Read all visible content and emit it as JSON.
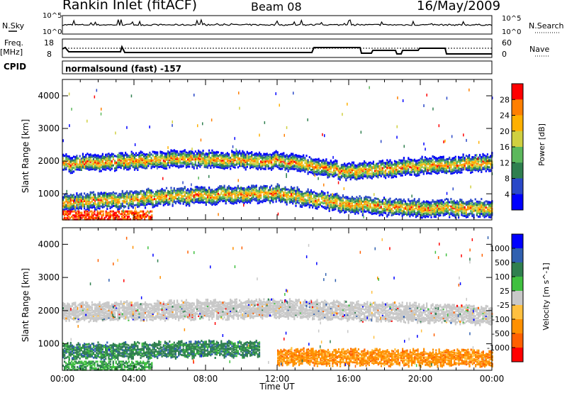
{
  "header": {
    "station": "Rankin Inlet (fitACF)",
    "beam": "Beam 08",
    "date": "16/May/2009"
  },
  "top_panels": {
    "nsky_label": "N.Sky",
    "nsearch_label": "N.Search",
    "count_ticks": [
      "10^5",
      "10^0"
    ],
    "freq_label_1": "Freq.",
    "freq_label_2": "[MHz]",
    "freq_ticks": [
      "18",
      "8"
    ],
    "nave_label": "Nave",
    "nave_ticks": [
      "60",
      "0"
    ],
    "cpid_label": "CPID",
    "cpid_value": "normalsound (fast) -157"
  },
  "chart_data": [
    {
      "type": "heatmap",
      "title": "",
      "ylabel": "Slant Range [km]",
      "xlabel": "",
      "x_ticks": [
        "00:00",
        "04:00",
        "08:00",
        "12:00",
        "16:00",
        "20:00",
        "00:00"
      ],
      "y_ticks": [
        "1000",
        "2000",
        "3000",
        "4000"
      ],
      "ylim": [
        200,
        4500
      ],
      "colorbar": {
        "label": "Power [dB]",
        "tick_labels": [
          "28",
          "24",
          "20",
          "16",
          "12",
          "8",
          "4"
        ],
        "range": [
          0,
          30
        ],
        "colors": [
          "#0000ff",
          "#2a48c8",
          "#2f7f4f",
          "#5cb85c",
          "#d0d040",
          "#ffb000",
          "#ff7f00",
          "#ff0000"
        ]
      },
      "bands": [
        {
          "name": "upper",
          "x": [
            0,
            6,
            12,
            16,
            19,
            24
          ],
          "center_km": [
            1950,
            2100,
            2050,
            1700,
            1850,
            2000
          ]
        },
        {
          "name": "lower",
          "x": [
            0,
            6,
            12,
            16,
            19,
            24
          ],
          "center_km": [
            750,
            950,
            1050,
            700,
            600,
            600
          ]
        }
      ]
    },
    {
      "type": "heatmap",
      "title": "",
      "ylabel": "Slant Range [km]",
      "xlabel": "Time UT",
      "x_ticks": [
        "00:00",
        "04:00",
        "08:00",
        "12:00",
        "16:00",
        "20:00",
        "00:00"
      ],
      "y_ticks": [
        "1000",
        "2000",
        "3000",
        "4000"
      ],
      "ylim": [
        200,
        4500
      ],
      "colorbar": {
        "label": "Velocity [m s^-1]",
        "tick_labels": [
          "1000",
          "500",
          "100",
          "25",
          "-25",
          "-100",
          "-500",
          "-1000"
        ],
        "range": [
          -1000,
          1000
        ],
        "colors": [
          "#ff0000",
          "#ff6000",
          "#ff9000",
          "#ffc040",
          "#c8c8c8",
          "#40c040",
          "#2f7f4f",
          "#3060b0",
          "#0000ff"
        ]
      },
      "bands": [
        {
          "name": "ground-scatter",
          "x": [
            0,
            12,
            24
          ],
          "center_km": [
            2000,
            2100,
            1900
          ]
        },
        {
          "name": "positive-flow",
          "x": [
            0,
            11
          ],
          "center_km": [
            800,
            900
          ]
        },
        {
          "name": "negative-flow",
          "x": [
            12,
            24
          ],
          "center_km": [
            650,
            600
          ]
        }
      ]
    }
  ]
}
